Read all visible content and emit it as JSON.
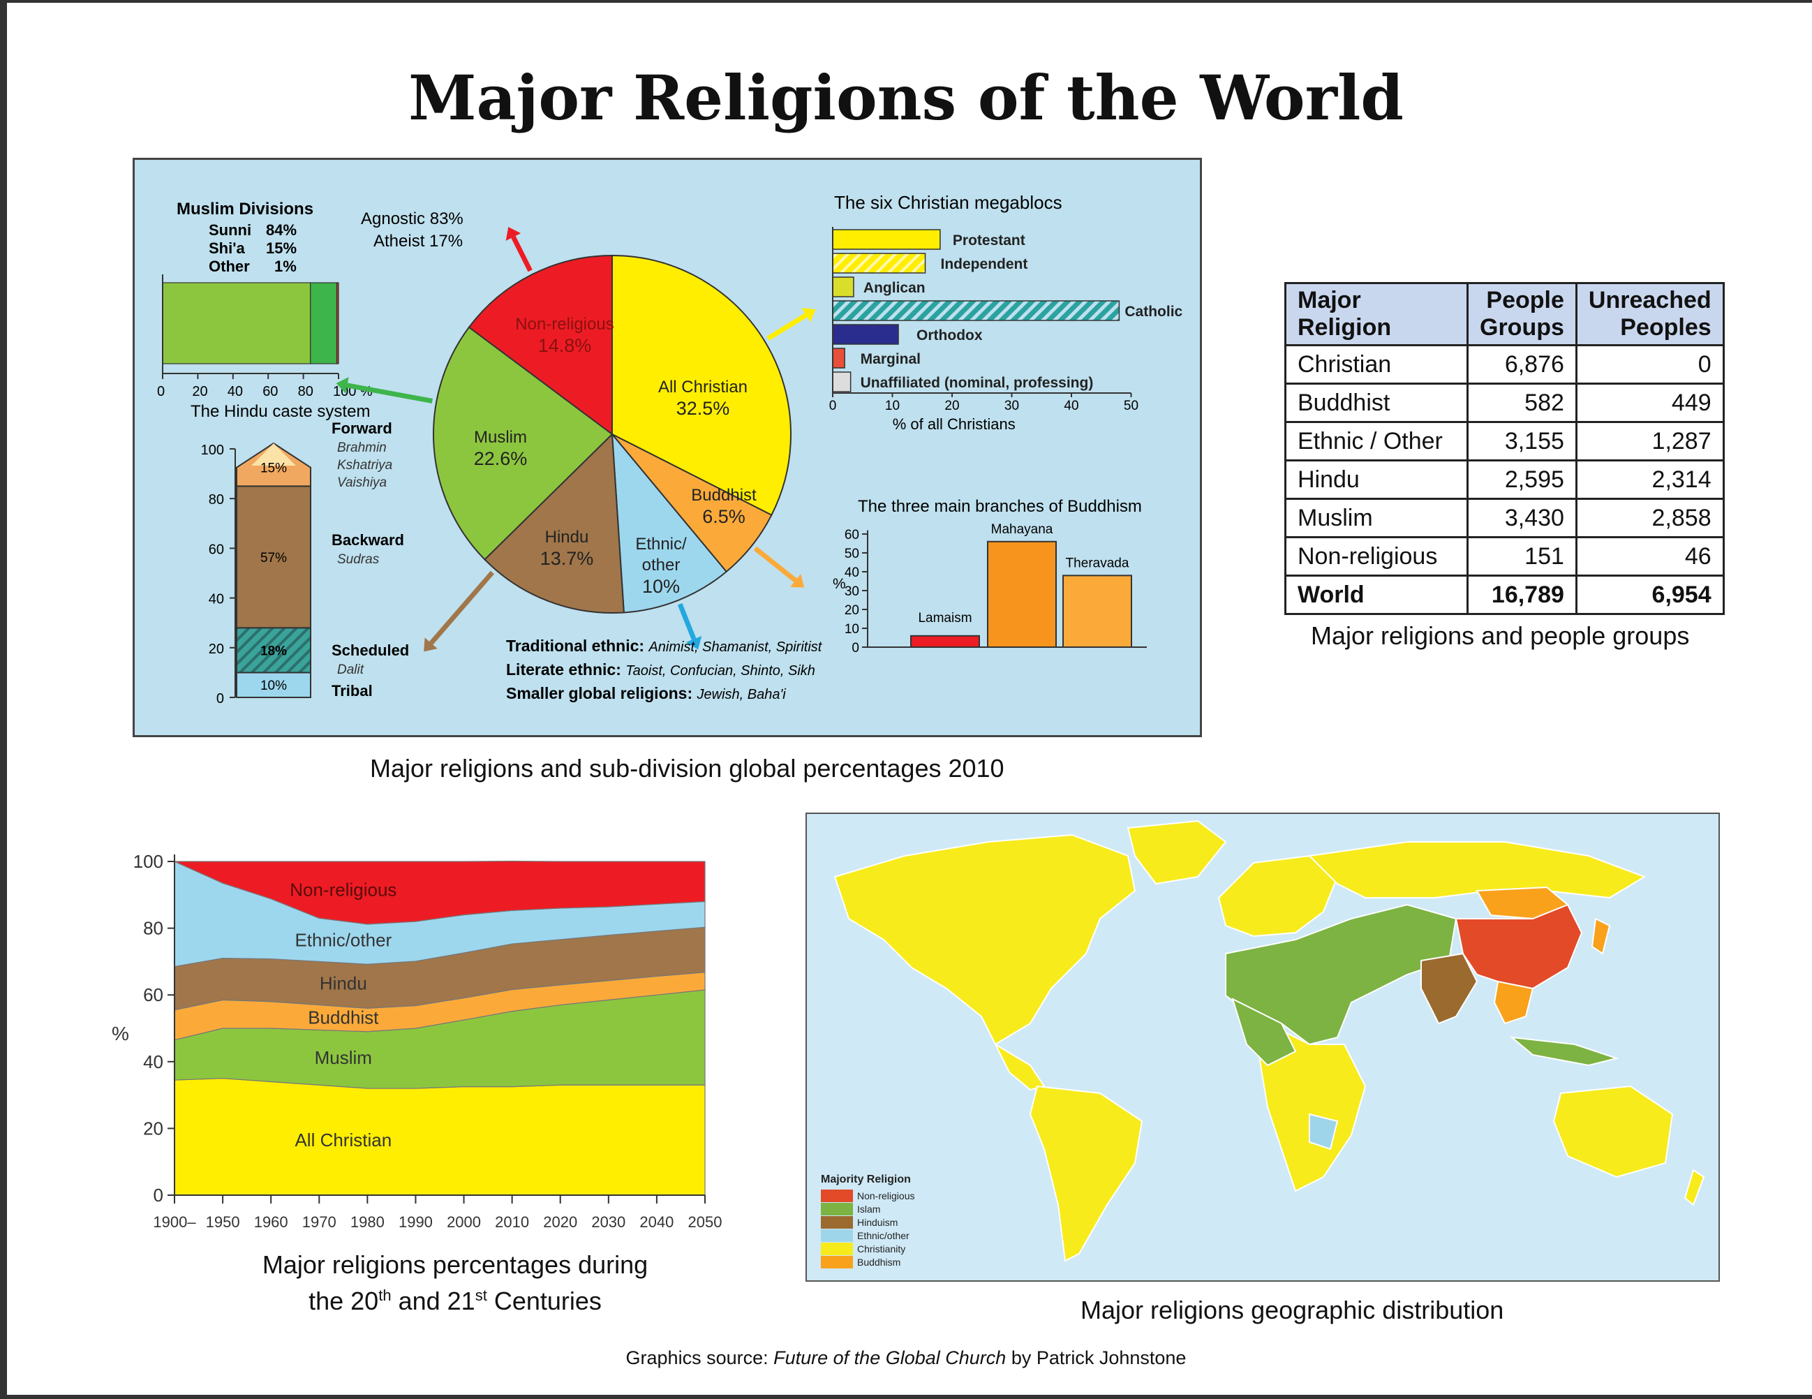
{
  "title": "Major Religions of the World",
  "captions": {
    "panel": "Major religions and sub-division global percentages 2010",
    "area": "Major religions percentages during",
    "area_line2_a": "the 20",
    "area_sup1": "th",
    "area_line2_b": " and 21",
    "area_sup2": "st",
    "area_line2_c": " Centuries",
    "table": "Major religions and people groups",
    "map": "Major religions geographic distribution"
  },
  "source": {
    "prefix": "Graphics source: ",
    "book": "Future of the Global Church",
    "suffix": " by Patrick Johnstone"
  },
  "colors": {
    "christian": "#ffee00",
    "muslim": "#8cc63f",
    "hindu": "#a0764a",
    "buddhist": "#fbaa3a",
    "ethnic": "#9dd7ee",
    "nonreligious": "#ed1c24",
    "map_nonreligious": "#e24a28",
    "map_islam": "#7cb342",
    "map_hinduism": "#9a6a2f",
    "map_ethnic": "#9fd5ea",
    "map_christianity": "#f7eb1c",
    "map_buddhism": "#f9a11b"
  },
  "chart_data": [
    {
      "type": "bar",
      "title": "Muslim Divisions",
      "orientation": "horizontal-stacked",
      "legend_lines": [
        {
          "name": "Sunni",
          "value": "84%"
        },
        {
          "name": "Shi'a",
          "value": "15%"
        },
        {
          "name": "Other",
          "value": "1%"
        }
      ],
      "series": [
        {
          "name": "Sunni",
          "values": [
            84
          ]
        },
        {
          "name": "Shi'a",
          "values": [
            15
          ]
        },
        {
          "name": "Other",
          "values": [
            1
          ]
        }
      ],
      "xlim": [
        0,
        100
      ],
      "x_ticks": [
        "0",
        "20",
        "40",
        "60",
        "80",
        "100 %"
      ]
    },
    {
      "type": "pie",
      "slices": [
        {
          "name": "All Christian",
          "value": 32.5,
          "label": "32.5%"
        },
        {
          "name": "Buddhist",
          "value": 6.5,
          "label": "6.5%"
        },
        {
          "name": "Ethnic/ other",
          "value": 10,
          "label": "10%"
        },
        {
          "name": "Hindu",
          "value": 13.7,
          "label": "13.7%"
        },
        {
          "name": "Muslim",
          "value": 22.6,
          "label": "22.6%"
        },
        {
          "name": "Non-religious",
          "value": 14.8,
          "label": "14.8%"
        }
      ],
      "annotations": {
        "nonreligious_line1": "Agnostic 83%",
        "nonreligious_line2": "Atheist 17%",
        "ethnic_heading1": "Traditional ethnic:",
        "ethnic_detail1": "Animist, Shamanist, Spiritist",
        "ethnic_heading2": "Literate ethnic:",
        "ethnic_detail2": "Taoist, Confucian, Shinto, Sikh",
        "ethnic_heading3": "Smaller global religions:",
        "ethnic_detail3": "Jewish, Baha'i"
      }
    },
    {
      "type": "bar",
      "title": "The six Christian megablocs",
      "orientation": "horizontal",
      "categories": [
        "Protestant",
        "Independent",
        "Anglican",
        "Catholic",
        "Orthodox",
        "Marginal",
        "Unaffiliated (nominal, professing)"
      ],
      "values": [
        18,
        15.5,
        3.5,
        48,
        11,
        2,
        3
      ],
      "xlabel": "% of all Christians",
      "xlim": [
        0,
        50
      ],
      "x_ticks": [
        "0",
        "10",
        "20",
        "30",
        "40",
        "50"
      ]
    },
    {
      "type": "bar",
      "title": "The Hindu caste system",
      "orientation": "vertical-stacked",
      "segments": [
        {
          "name": "Tribal",
          "value": 10,
          "label": "10%",
          "examples": []
        },
        {
          "name": "Scheduled",
          "value": 18,
          "label": "18%",
          "examples": [
            "Dalit"
          ]
        },
        {
          "name": "Backward",
          "value": 57,
          "label": "57%",
          "examples": [
            "Sudras"
          ]
        },
        {
          "name": "Forward",
          "value": 15,
          "label": "15%",
          "examples": [
            "Brahmin",
            "Kshatriya",
            "Vaishiya"
          ]
        }
      ],
      "ylim": [
        0,
        100
      ],
      "y_ticks": [
        "0",
        "20",
        "40",
        "60",
        "80",
        "100"
      ]
    },
    {
      "type": "bar",
      "title": "The three main branches of Buddhism",
      "categories": [
        "Lamaism",
        "Mahayana",
        "Theravada"
      ],
      "values": [
        6,
        56,
        38
      ],
      "ylabel": "%",
      "ylim": [
        0,
        60
      ],
      "y_ticks": [
        "0",
        "10",
        "20",
        "30",
        "40",
        "50",
        "60"
      ]
    },
    {
      "type": "area",
      "stacked": true,
      "x": [
        1900,
        1950,
        1960,
        1970,
        1980,
        1990,
        2000,
        2010,
        2020,
        2030,
        2040,
        2050
      ],
      "x_ticks": [
        "1900–",
        "1950",
        "1960",
        "1970",
        "1980",
        "1990",
        "2000",
        "2010",
        "2020",
        "2030",
        "2040",
        "2050"
      ],
      "ylabel": "%",
      "ylim": [
        0,
        100
      ],
      "y_ticks": [
        "0",
        "20",
        "40",
        "60",
        "80",
        "100"
      ],
      "series": [
        {
          "name": "All Christian",
          "values": [
            34.5,
            35,
            34,
            33,
            32,
            32,
            32.5,
            32.5,
            33,
            33,
            33,
            33
          ]
        },
        {
          "name": "Muslim",
          "values": [
            12,
            15,
            16,
            16.5,
            17,
            18,
            20,
            22.6,
            24,
            25.5,
            27,
            28.5
          ]
        },
        {
          "name": "Buddhist",
          "values": [
            9,
            8.5,
            8,
            7.5,
            7,
            6.8,
            6.6,
            6.5,
            6,
            5.8,
            5.6,
            5.3
          ]
        },
        {
          "name": "Hindu",
          "values": [
            13,
            12.5,
            12.8,
            13,
            13.2,
            13.3,
            13.5,
            13.7,
            13.6,
            13.6,
            13.5,
            13.5
          ]
        },
        {
          "name": "Ethnic/other",
          "values": [
            31.5,
            22.5,
            18,
            13,
            12,
            11.9,
            11.4,
            10,
            9.4,
            8.5,
            8.1,
            7.7
          ]
        },
        {
          "name": "Non-religious",
          "values": [
            0,
            6.5,
            11.2,
            17,
            18.8,
            18,
            16,
            14.8,
            14,
            13.6,
            12.8,
            12
          ]
        }
      ]
    },
    {
      "type": "table",
      "columns": [
        "Major Religion",
        "People Groups",
        "Unreached Peoples"
      ],
      "header_lines": [
        [
          "",
          "Major Religion"
        ],
        [
          "People",
          "Groups"
        ],
        [
          "Unreached",
          "Peoples"
        ]
      ],
      "rows": [
        [
          "Christian",
          "6,876",
          "0"
        ],
        [
          "Buddhist",
          "582",
          "449"
        ],
        [
          "Ethnic / Other",
          "3,155",
          "1,287"
        ],
        [
          "Hindu",
          "2,595",
          "2,314"
        ],
        [
          "Muslim",
          "3,430",
          "2,858"
        ],
        [
          "Non-religious",
          "151",
          "46"
        ]
      ],
      "total": [
        "World",
        "16,789",
        "6,954"
      ]
    }
  ],
  "map": {
    "legend_title": "Majority Religion",
    "legend": [
      {
        "name": "Non-religious",
        "color": "#e24a28"
      },
      {
        "name": "Islam",
        "color": "#7cb342"
      },
      {
        "name": "Hinduism",
        "color": "#9a6a2f"
      },
      {
        "name": "Ethnic/other",
        "color": "#9fd5ea"
      },
      {
        "name": "Christianity",
        "color": "#f7eb1c"
      },
      {
        "name": "Buddhism",
        "color": "#f9a11b"
      }
    ]
  }
}
